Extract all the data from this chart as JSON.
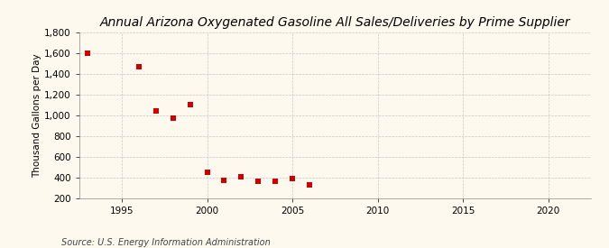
{
  "title": "Annual Arizona Oxygenated Gasoline All Sales/Deliveries by Prime Supplier",
  "ylabel": "Thousand Gallons per Day",
  "source": "Source: U.S. Energy Information Administration",
  "x_data": [
    1993,
    1996,
    1997,
    1998,
    1999,
    2000,
    2001,
    2002,
    2003,
    2004,
    2005,
    2006
  ],
  "y_data": [
    1600,
    1470,
    1040,
    975,
    1100,
    450,
    375,
    410,
    365,
    365,
    390,
    330
  ],
  "marker_color": "#cc0000",
  "marker_size": 18,
  "background_color": "#fef9ee",
  "grid_color": "#bbbbbb",
  "xlim": [
    1992.5,
    2022.5
  ],
  "ylim": [
    200,
    1800
  ],
  "xticks": [
    1995,
    2000,
    2005,
    2010,
    2015,
    2020
  ],
  "yticks": [
    200,
    400,
    600,
    800,
    1000,
    1200,
    1400,
    1600,
    1800
  ],
  "ytick_labels": [
    "200",
    "400",
    "600",
    "800",
    "1,000",
    "1,200",
    "1,400",
    "1,600",
    "1,800"
  ],
  "title_fontsize": 10,
  "label_fontsize": 7.5,
  "tick_fontsize": 7.5,
  "source_fontsize": 7
}
